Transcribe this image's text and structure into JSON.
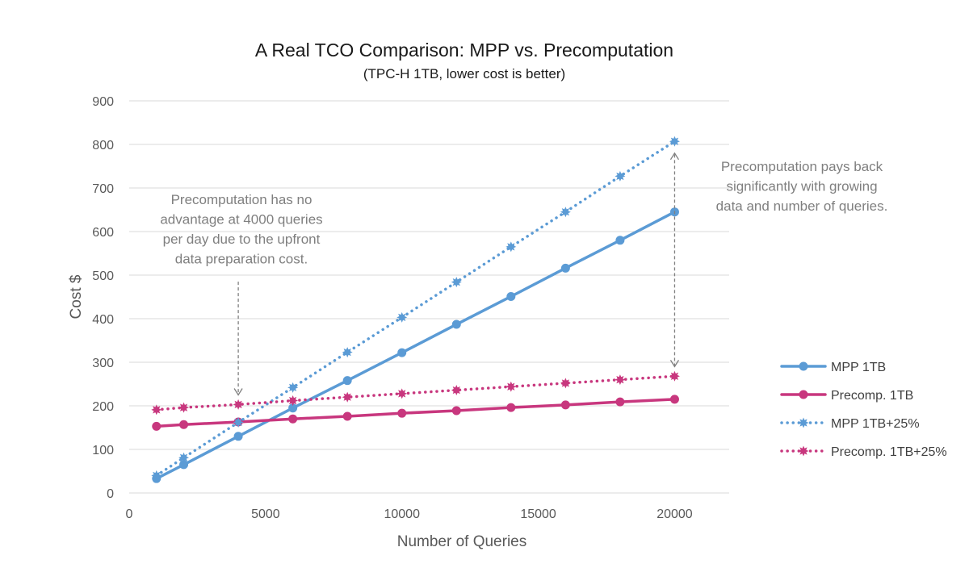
{
  "chart_data": {
    "type": "line",
    "title": "A Real TCO Comparison: MPP vs. Precomputation",
    "subtitle": "(TPC-H 1TB, lower cost is better)",
    "xlabel": "Number of Queries",
    "ylabel": "Cost $",
    "xlim": [
      0,
      22000
    ],
    "ylim": [
      0,
      900
    ],
    "x_ticks": [
      0,
      5000,
      10000,
      15000,
      20000
    ],
    "y_ticks": [
      0,
      100,
      200,
      300,
      400,
      500,
      600,
      700,
      800,
      900
    ],
    "grid": "horizontal",
    "legend_position": "right",
    "x": [
      1000,
      2000,
      4000,
      6000,
      8000,
      10000,
      12000,
      14000,
      16000,
      18000,
      20000
    ],
    "series": [
      {
        "name": "MPP 1TB",
        "color": "#5b9bd5",
        "style": "solid",
        "marker": "circle",
        "values": [
          33,
          65,
          130,
          195,
          258,
          322,
          387,
          451,
          516,
          580,
          645
        ]
      },
      {
        "name": "Precomp. 1TB",
        "color": "#c8377e",
        "style": "solid",
        "marker": "circle",
        "values": [
          153,
          157,
          163,
          170,
          176,
          183,
          189,
          196,
          202,
          209,
          215
        ]
      },
      {
        "name": "MPP 1TB+25%",
        "color": "#5b9bd5",
        "style": "dotted",
        "marker": "star",
        "values": [
          40,
          81,
          162,
          242,
          323,
          403,
          484,
          565,
          645,
          727,
          807
        ]
      },
      {
        "name": "Precomp. 1TB+25%",
        "color": "#c8377e",
        "style": "dotted",
        "marker": "star",
        "values": [
          191,
          196,
          203,
          212,
          220,
          228,
          236,
          244,
          252,
          260,
          268
        ]
      }
    ],
    "annotations": [
      {
        "lines": [
          "Precomputation has no",
          "advantage at 4000 queries",
          "per day due to the upfront",
          "data preparation cost."
        ],
        "arrow_x": 4000,
        "arrow_y": [
          485,
          225
        ]
      },
      {
        "lines": [
          "Precomputation pays back",
          "significantly with growing",
          "data and number of queries."
        ],
        "arrow_x": 20000,
        "arrow_y": [
          290,
          780
        ]
      }
    ]
  }
}
